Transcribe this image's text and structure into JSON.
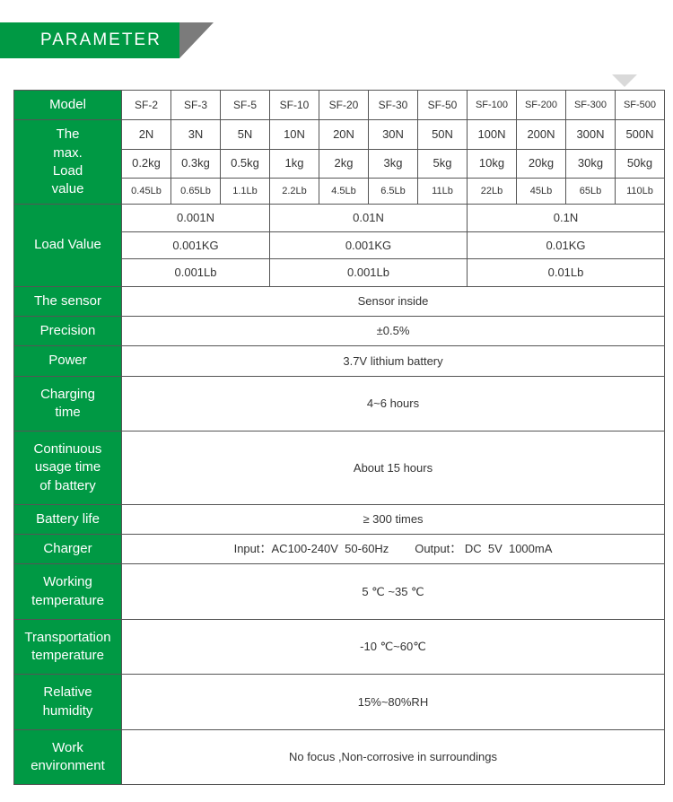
{
  "header": {
    "title": "PARAMETER"
  },
  "colors": {
    "green": "#009944",
    "gray": "#7b7b7b",
    "border": "#555555",
    "text": "#333333",
    "bg": "#ffffff",
    "arrow": "#d9d9d9"
  },
  "models": [
    "SF-2",
    "SF-3",
    "SF-5",
    "SF-10",
    "SF-20",
    "SF-30",
    "SF-50",
    "SF-100",
    "SF-200",
    "SF-300",
    "SF-500"
  ],
  "labels": {
    "model": "Model",
    "maxLoad": "The max. Load value",
    "loadValue": "Load Value",
    "sensor": "The sensor",
    "precision": "Precision",
    "power": "Power",
    "chargingTime": "Charging time",
    "contUsage": "Continuous usage  time of battery",
    "batteryLife": "Battery life",
    "charger": "Charger",
    "workTemp": "Working temperature",
    "transTemp": "Transportation temperature",
    "relHumidity": "Relative humidity",
    "workEnv": "Work environment"
  },
  "maxLoad": {
    "n": [
      "2N",
      "3N",
      "5N",
      "10N",
      "20N",
      "30N",
      "50N",
      "100N",
      "200N",
      "300N",
      "500N"
    ],
    "kg": [
      "0.2kg",
      "0.3kg",
      "0.5kg",
      "1kg",
      "2kg",
      "3kg",
      "5kg",
      "10kg",
      "20kg",
      "30kg",
      "50kg"
    ],
    "lb": [
      "0.45Lb",
      "0.65Lb",
      "1.1Lb",
      "2.2Lb",
      "4.5Lb",
      "6.5Lb",
      "11Lb",
      "22Lb",
      "45Lb",
      "65Lb",
      "110Lb"
    ]
  },
  "loadValue": {
    "group1": {
      "n": "0.001N",
      "kg": "0.001KG",
      "lb": "0.001Lb"
    },
    "group2": {
      "n": "0.01N",
      "kg": "0.001KG",
      "lb": "0.001Lb"
    },
    "group3": {
      "n": "0.1N",
      "kg": "0.01KG",
      "lb": "0.01Lb"
    }
  },
  "values": {
    "sensor": "Sensor inside",
    "precision": "±0.5%",
    "power": "3.7V lithium battery",
    "chargingTime": "4~6 hours",
    "contUsage": "About 15 hours",
    "batteryLife": "≥ 300 times",
    "charger": "Input：AC100-240V  50-60Hz        Output： DC  5V  1000mA",
    "workTemp": "5 ℃ ~35 ℃",
    "transTemp": "-10 ℃~60℃",
    "relHumidity": "15%~80%RH",
    "workEnv": "No focus ,Non-corrosive in surroundings"
  }
}
